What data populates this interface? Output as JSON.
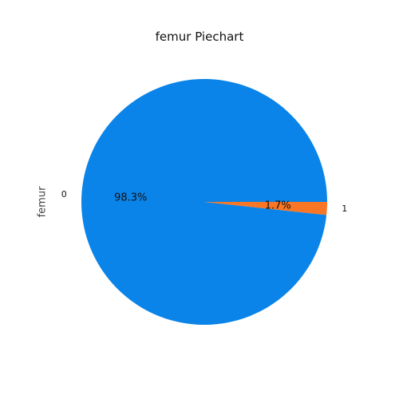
{
  "chart_data": {
    "type": "pie",
    "title": "femur Piechart",
    "ylabel": "femur",
    "categories": [
      "0",
      "1"
    ],
    "values": [
      98.3,
      1.7
    ],
    "pct_labels": [
      "98.3%",
      "1.7%"
    ],
    "colors": [
      "#0a84e8",
      "#f97625"
    ],
    "legend": "none"
  }
}
